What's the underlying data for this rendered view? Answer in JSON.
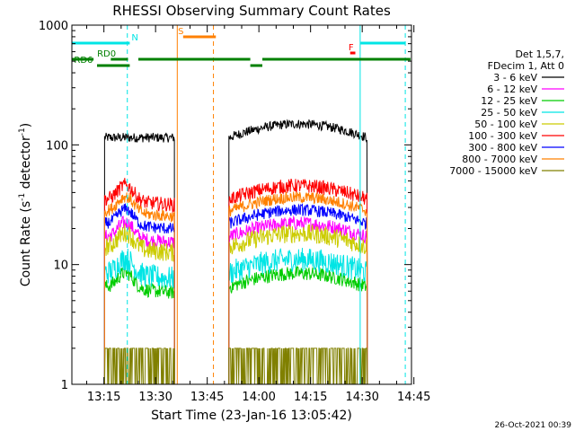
{
  "chart_data": {
    "type": "line",
    "title": "RHESSI Observing Summary Count Rates",
    "xlabel": "Start Time (23-Jan-16 13:05:42)",
    "ylabel_main": "Count Rate (s",
    "ylabel_sup": "-1",
    "ylabel_tail": " detector",
    "ylabel_end": ")",
    "y_scale": "log",
    "ylim": [
      1,
      1000
    ],
    "y_ticks": [
      "1",
      "10",
      "100",
      "1000"
    ],
    "xlim_minutes": [
      5.7,
      104.3
    ],
    "x_ticks": [
      {
        "label": "13:15",
        "minute": 15
      },
      {
        "label": "13:30",
        "minute": 30
      },
      {
        "label": "13:45",
        "minute": 45
      },
      {
        "label": "14:00",
        "minute": 60
      },
      {
        "label": "14:15",
        "minute": 75
      },
      {
        "label": "14:30",
        "minute": 90
      },
      {
        "label": "14:45",
        "minute": 105
      }
    ],
    "legend_header": [
      "Det 1,5,7,",
      "FDecim 1, Att 0"
    ],
    "legend_placement": "right",
    "series": [
      {
        "name": "3 - 6 keV",
        "color": "#000000",
        "level": 115,
        "noise": 0.04
      },
      {
        "name": "6 - 12 keV",
        "color": "#ff00ff",
        "level": 17,
        "noise": 0.06
      },
      {
        "name": "12 - 25 keV",
        "color": "#00cc00",
        "level": 6.5,
        "noise": 0.06
      },
      {
        "name": "25 - 50 keV",
        "color": "#00e5e5",
        "level": 8.5,
        "noise": 0.1
      },
      {
        "name": "50 - 100 keV",
        "color": "#cccc00",
        "level": 14,
        "noise": 0.08
      },
      {
        "name": "100 - 300 keV",
        "color": "#ff0000",
        "level": 35,
        "noise": 0.06
      },
      {
        "name": "300 - 800 keV",
        "color": "#0000ff",
        "level": 22,
        "noise": 0.05
      },
      {
        "name": "800 - 7000 keV",
        "color": "#ff8000",
        "level": 28,
        "noise": 0.05
      },
      {
        "name": "7000 - 15000 keV",
        "color": "#808000",
        "level": 1.4,
        "noise": 0.3
      }
    ],
    "data_segments_minutes": [
      [
        15.2,
        35.5
      ],
      [
        51.3,
        91.5
      ]
    ],
    "flags": {
      "N": {
        "label": "N",
        "color": "#00e5e5",
        "segments": [
          [
            5.7,
            22.5
          ],
          [
            89.5,
            102.5
          ]
        ]
      },
      "S": {
        "label": "S",
        "color": "#ff8000",
        "segments": [
          [
            38,
            47.5
          ]
        ]
      },
      "F": {
        "label": "F",
        "color": "#ff0000",
        "segments": [
          [
            86.5,
            88
          ]
        ]
      },
      "RD0": {
        "label": "RD0",
        "color": "#008000",
        "segments": [
          [
            5.7,
            12
          ],
          [
            17,
            22
          ],
          [
            25,
            57.5
          ],
          [
            61,
            104
          ]
        ]
      },
      "RD6": {
        "label": "RD6",
        "color": "#008000",
        "segments": [
          [
            13,
            22.5
          ],
          [
            57.5,
            61
          ]
        ]
      }
    },
    "vlines": [
      {
        "minute": 21.8,
        "color": "#00e5e5",
        "style": "dashed"
      },
      {
        "minute": 36.3,
        "color": "#ff8000",
        "style": "solid"
      },
      {
        "minute": 46.8,
        "color": "#ff8000",
        "style": "dashed"
      },
      {
        "minute": 89.4,
        "color": "#00e5e5",
        "style": "solid"
      },
      {
        "minute": 102.5,
        "color": "#00e5e5",
        "style": "dashed"
      }
    ],
    "timestamp": "26-Oct-2021 00:39"
  }
}
